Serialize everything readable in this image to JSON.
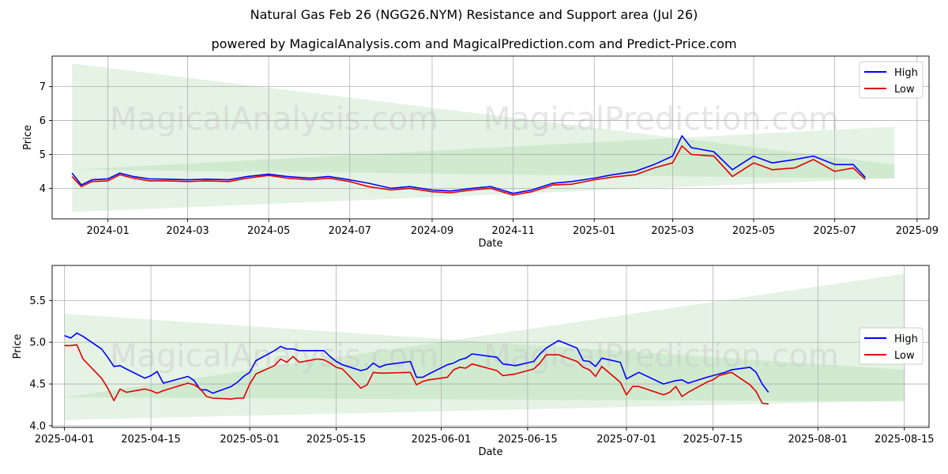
{
  "title": "Natural Gas Feb 26 (NGG26.NYM) Resistance and Support area (Jul 26)",
  "subtitle": "powered by MagicalAnalysis.com and MagicalPrediction.com and Predict-Price.com",
  "watermark": [
    "MagicalAnalysis.com",
    "MagicalPrediction.com"
  ],
  "colors": {
    "high": "#0000ff",
    "low": "#e00000",
    "band": "#9fd49f",
    "grid": "#b0b0b0"
  },
  "chart_data": [
    {
      "type": "line",
      "xlabel": "Date",
      "ylabel": "Price",
      "xlim": [
        "2023-11-20",
        "2025-09-10"
      ],
      "ylim": [
        3.1,
        7.9
      ],
      "xticks": [
        "2024-01",
        "2024-03",
        "2024-05",
        "2024-07",
        "2024-09",
        "2024-11",
        "2025-01",
        "2025-03",
        "2025-05",
        "2025-07",
        "2025-09"
      ],
      "xtick_dates": [
        "2024-01-01",
        "2024-03-01",
        "2024-05-01",
        "2024-07-01",
        "2024-09-01",
        "2024-11-01",
        "2025-01-01",
        "2025-03-01",
        "2025-05-01",
        "2025-07-01",
        "2025-09-01"
      ],
      "yticks": [
        4,
        5,
        6,
        7
      ],
      "legend": {
        "position": "top-right",
        "entries": [
          "High",
          "Low"
        ]
      },
      "bands": [
        {
          "start": "2023-12-05",
          "end": "2025-08-15",
          "upper": [
            7.68,
            4.7
          ],
          "lower": [
            4.55,
            4.28
          ]
        },
        {
          "start": "2023-12-05",
          "end": "2025-08-15",
          "upper": [
            4.55,
            5.82
          ],
          "lower": [
            3.3,
            4.3
          ]
        }
      ],
      "series": [
        {
          "name": "High",
          "x": [
            "2023-12-05",
            "2023-12-12",
            "2023-12-20",
            "2024-01-01",
            "2024-01-10",
            "2024-01-20",
            "2024-02-01",
            "2024-02-15",
            "2024-03-01",
            "2024-03-15",
            "2024-04-01",
            "2024-04-15",
            "2024-05-01",
            "2024-05-15",
            "2024-06-01",
            "2024-06-15",
            "2024-07-01",
            "2024-07-15",
            "2024-08-01",
            "2024-08-15",
            "2024-09-01",
            "2024-09-15",
            "2024-10-01",
            "2024-10-15",
            "2024-11-01",
            "2024-11-15",
            "2024-12-01",
            "2024-12-15",
            "2025-01-01",
            "2025-01-15",
            "2025-02-01",
            "2025-02-15",
            "2025-03-01",
            "2025-03-08",
            "2025-03-15",
            "2025-04-01",
            "2025-04-15",
            "2025-05-01",
            "2025-05-15",
            "2025-06-01",
            "2025-06-15",
            "2025-07-01",
            "2025-07-15",
            "2025-07-24"
          ],
          "values": [
            4.45,
            4.1,
            4.25,
            4.28,
            4.45,
            4.35,
            4.28,
            4.27,
            4.25,
            4.27,
            4.25,
            4.35,
            4.42,
            4.35,
            4.3,
            4.35,
            4.25,
            4.15,
            4.0,
            4.05,
            3.95,
            3.92,
            4.0,
            4.05,
            3.85,
            3.95,
            4.15,
            4.2,
            4.3,
            4.4,
            4.5,
            4.7,
            4.95,
            5.55,
            5.2,
            5.08,
            4.55,
            4.95,
            4.75,
            4.85,
            4.95,
            4.7,
            4.7,
            4.32
          ]
        },
        {
          "name": "Low",
          "x": [
            "2023-12-05",
            "2023-12-12",
            "2023-12-20",
            "2024-01-01",
            "2024-01-10",
            "2024-01-20",
            "2024-02-01",
            "2024-02-15",
            "2024-03-01",
            "2024-03-15",
            "2024-04-01",
            "2024-04-15",
            "2024-05-01",
            "2024-05-15",
            "2024-06-01",
            "2024-06-15",
            "2024-07-01",
            "2024-07-15",
            "2024-08-01",
            "2024-08-15",
            "2024-09-01",
            "2024-09-15",
            "2024-10-01",
            "2024-10-15",
            "2024-11-01",
            "2024-11-15",
            "2024-12-01",
            "2024-12-15",
            "2025-01-01",
            "2025-01-15",
            "2025-02-01",
            "2025-02-15",
            "2025-03-01",
            "2025-03-08",
            "2025-03-15",
            "2025-04-01",
            "2025-04-15",
            "2025-05-01",
            "2025-05-15",
            "2025-06-01",
            "2025-06-15",
            "2025-07-01",
            "2025-07-15",
            "2025-07-24"
          ],
          "values": [
            4.35,
            4.05,
            4.2,
            4.22,
            4.4,
            4.3,
            4.22,
            4.22,
            4.2,
            4.22,
            4.2,
            4.3,
            4.38,
            4.3,
            4.25,
            4.3,
            4.2,
            4.05,
            3.95,
            4.0,
            3.9,
            3.87,
            3.95,
            4.0,
            3.8,
            3.9,
            4.1,
            4.12,
            4.25,
            4.33,
            4.4,
            4.6,
            4.75,
            5.25,
            5.0,
            4.95,
            4.35,
            4.75,
            4.55,
            4.6,
            4.85,
            4.5,
            4.6,
            4.26
          ]
        }
      ]
    },
    {
      "type": "line",
      "xlabel": "Date",
      "ylabel": "Price",
      "xlim": [
        "2025-03-30",
        "2025-08-19"
      ],
      "ylim": [
        3.98,
        5.92
      ],
      "xticks": [
        "2025-04-01",
        "2025-04-15",
        "2025-05-01",
        "2025-05-15",
        "2025-06-01",
        "2025-06-15",
        "2025-07-01",
        "2025-07-15",
        "2025-08-01",
        "2025-08-15"
      ],
      "yticks": [
        4.0,
        4.5,
        5.0,
        5.5
      ],
      "ytick_labels": [
        "4.0",
        "4.5",
        "5.0",
        "5.5"
      ],
      "legend": {
        "position": "center-right",
        "entries": [
          "High",
          "Low"
        ]
      },
      "bands": [
        {
          "start": "2025-04-01",
          "end": "2025-08-15",
          "upper": [
            5.34,
            4.67
          ],
          "lower": [
            4.34,
            4.29
          ]
        },
        {
          "start": "2025-04-01",
          "end": "2025-08-15",
          "upper": [
            4.34,
            5.82
          ],
          "lower": [
            4.07,
            4.3
          ]
        }
      ],
      "series": [
        {
          "name": "High",
          "x": [
            "2025-04-01",
            "2025-04-02",
            "2025-04-03",
            "2025-04-04",
            "2025-04-07",
            "2025-04-08",
            "2025-04-09",
            "2025-04-10",
            "2025-04-11",
            "2025-04-14",
            "2025-04-15",
            "2025-04-16",
            "2025-04-17",
            "2025-04-21",
            "2025-04-22",
            "2025-04-23",
            "2025-04-24",
            "2025-04-25",
            "2025-04-28",
            "2025-04-29",
            "2025-04-30",
            "2025-05-01",
            "2025-05-02",
            "2025-05-05",
            "2025-05-06",
            "2025-05-07",
            "2025-05-08",
            "2025-05-09",
            "2025-05-12",
            "2025-05-13",
            "2025-05-14",
            "2025-05-15",
            "2025-05-16",
            "2025-05-19",
            "2025-05-20",
            "2025-05-21",
            "2025-05-22",
            "2025-05-23",
            "2025-05-27",
            "2025-05-28",
            "2025-05-29",
            "2025-05-30",
            "2025-06-02",
            "2025-06-03",
            "2025-06-04",
            "2025-06-05",
            "2025-06-06",
            "2025-06-09",
            "2025-06-10",
            "2025-06-11",
            "2025-06-12",
            "2025-06-13",
            "2025-06-16",
            "2025-06-17",
            "2025-06-18",
            "2025-06-20",
            "2025-06-23",
            "2025-06-24",
            "2025-06-25",
            "2025-06-26",
            "2025-06-27",
            "2025-06-30",
            "2025-07-01",
            "2025-07-02",
            "2025-07-03",
            "2025-07-07",
            "2025-07-08",
            "2025-07-09",
            "2025-07-10",
            "2025-07-11",
            "2025-07-14",
            "2025-07-15",
            "2025-07-16",
            "2025-07-17",
            "2025-07-18",
            "2025-07-21",
            "2025-07-22",
            "2025-07-23",
            "2025-07-24"
          ],
          "values": [
            5.08,
            5.05,
            5.11,
            5.07,
            4.92,
            4.82,
            4.71,
            4.72,
            4.68,
            4.57,
            4.6,
            4.65,
            4.51,
            4.59,
            4.54,
            4.43,
            4.43,
            4.39,
            4.47,
            4.52,
            4.59,
            4.64,
            4.78,
            4.9,
            4.95,
            4.92,
            4.92,
            4.9,
            4.9,
            4.9,
            4.83,
            4.77,
            4.73,
            4.66,
            4.68,
            4.75,
            4.7,
            4.73,
            4.77,
            4.58,
            4.58,
            4.62,
            4.73,
            4.75,
            4.79,
            4.81,
            4.86,
            4.83,
            4.82,
            4.74,
            4.73,
            4.72,
            4.77,
            4.86,
            4.93,
            5.02,
            4.93,
            4.78,
            4.77,
            4.71,
            4.81,
            4.76,
            4.56,
            4.6,
            4.64,
            4.5,
            4.52,
            4.54,
            4.55,
            4.51,
            4.58,
            4.6,
            4.62,
            4.64,
            4.67,
            4.7,
            4.64,
            4.5,
            4.4
          ]
        },
        {
          "name": "Low",
          "x": [
            "2025-04-01",
            "2025-04-02",
            "2025-04-03",
            "2025-04-04",
            "2025-04-07",
            "2025-04-08",
            "2025-04-09",
            "2025-04-10",
            "2025-04-11",
            "2025-04-14",
            "2025-04-15",
            "2025-04-16",
            "2025-04-17",
            "2025-04-21",
            "2025-04-22",
            "2025-04-23",
            "2025-04-24",
            "2025-04-25",
            "2025-04-28",
            "2025-04-29",
            "2025-04-30",
            "2025-05-01",
            "2025-05-02",
            "2025-05-05",
            "2025-05-06",
            "2025-05-07",
            "2025-05-08",
            "2025-05-09",
            "2025-05-12",
            "2025-05-13",
            "2025-05-14",
            "2025-05-15",
            "2025-05-16",
            "2025-05-19",
            "2025-05-20",
            "2025-05-21",
            "2025-05-22",
            "2025-05-23",
            "2025-05-27",
            "2025-05-28",
            "2025-05-29",
            "2025-05-30",
            "2025-06-02",
            "2025-06-03",
            "2025-06-04",
            "2025-06-05",
            "2025-06-06",
            "2025-06-09",
            "2025-06-10",
            "2025-06-11",
            "2025-06-12",
            "2025-06-13",
            "2025-06-16",
            "2025-06-17",
            "2025-06-18",
            "2025-06-20",
            "2025-06-23",
            "2025-06-24",
            "2025-06-25",
            "2025-06-26",
            "2025-06-27",
            "2025-06-30",
            "2025-07-01",
            "2025-07-02",
            "2025-07-03",
            "2025-07-07",
            "2025-07-08",
            "2025-07-09",
            "2025-07-10",
            "2025-07-11",
            "2025-07-14",
            "2025-07-15",
            "2025-07-16",
            "2025-07-17",
            "2025-07-18",
            "2025-07-21",
            "2025-07-22",
            "2025-07-23",
            "2025-07-24"
          ],
          "values": [
            4.96,
            4.96,
            4.97,
            4.8,
            4.57,
            4.45,
            4.3,
            4.44,
            4.4,
            4.44,
            4.42,
            4.39,
            4.42,
            4.51,
            4.49,
            4.44,
            4.35,
            4.33,
            4.32,
            4.33,
            4.33,
            4.5,
            4.62,
            4.72,
            4.8,
            4.76,
            4.83,
            4.76,
            4.8,
            4.79,
            4.75,
            4.7,
            4.68,
            4.45,
            4.49,
            4.64,
            4.63,
            4.63,
            4.64,
            4.49,
            4.53,
            4.55,
            4.58,
            4.67,
            4.7,
            4.69,
            4.74,
            4.68,
            4.66,
            4.6,
            4.61,
            4.62,
            4.68,
            4.75,
            4.85,
            4.85,
            4.77,
            4.7,
            4.67,
            4.59,
            4.71,
            4.52,
            4.37,
            4.47,
            4.47,
            4.37,
            4.4,
            4.47,
            4.35,
            4.4,
            4.52,
            4.55,
            4.6,
            4.62,
            4.64,
            4.49,
            4.41,
            4.27,
            4.26
          ]
        }
      ]
    }
  ]
}
